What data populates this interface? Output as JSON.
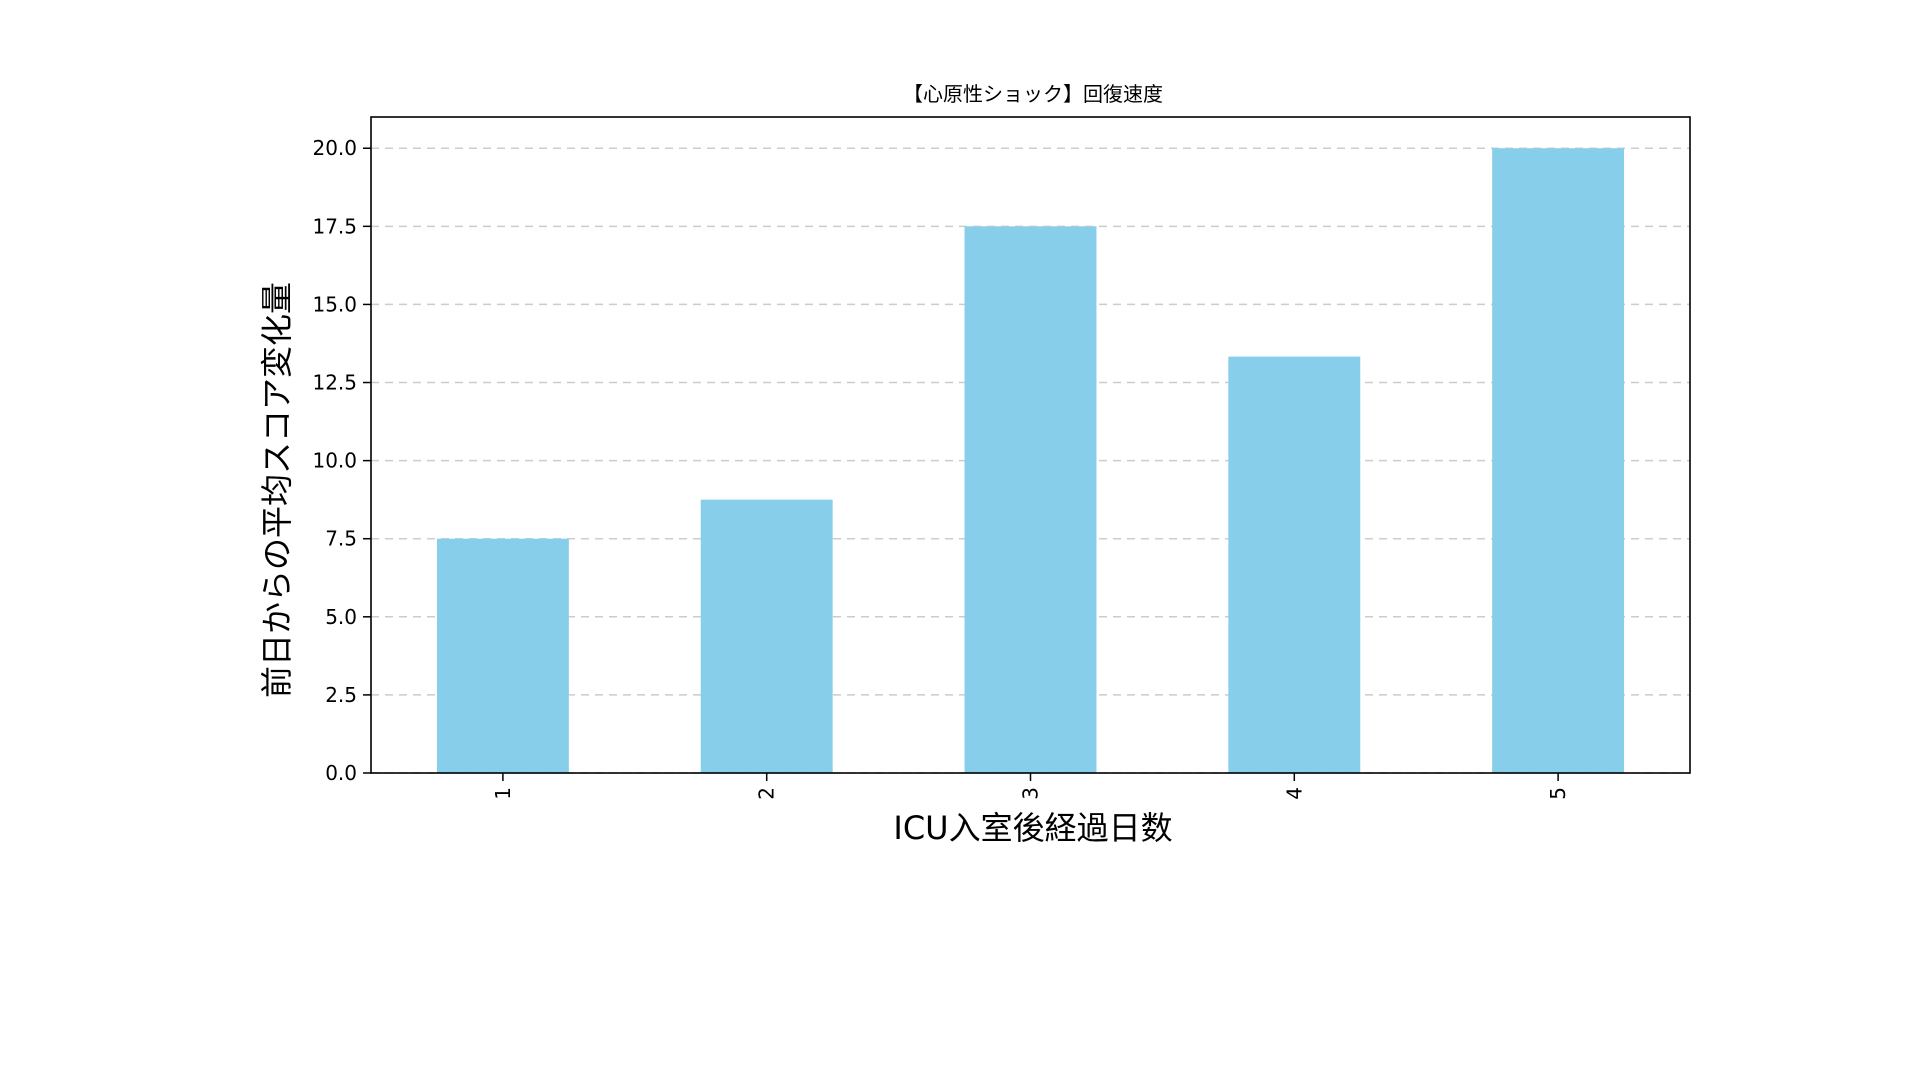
{
  "chart_data": {
    "type": "bar",
    "title": "【心原性ショック】回復速度",
    "xlabel": "ICU入室後経過日数",
    "ylabel": "前日からの平均スコア変化量",
    "categories": [
      "1",
      "2",
      "3",
      "4",
      "5"
    ],
    "values": [
      7.5,
      8.75,
      17.5,
      13.33,
      20.0
    ],
    "ylim": [
      0,
      21
    ],
    "yticks": [
      "0.0",
      "2.5",
      "5.0",
      "7.5",
      "10.0",
      "12.5",
      "15.0",
      "17.5",
      "20.0"
    ],
    "bar_color": "#87CEEB",
    "grid": "y-dashed",
    "legend": "none"
  }
}
